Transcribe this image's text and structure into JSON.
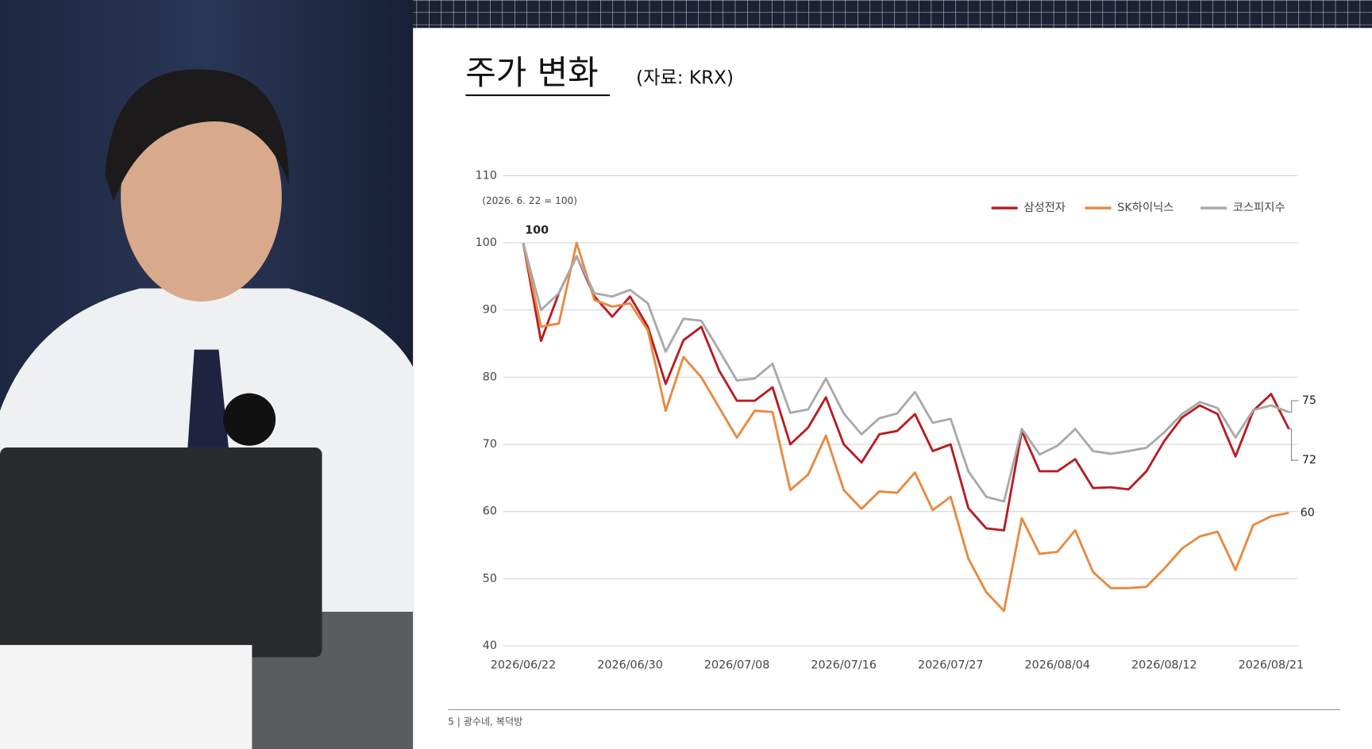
{
  "chart_data": {
    "type": "line",
    "title": "주가 변화",
    "source": "(자료: KRX)",
    "subtitle": "(2026. 6. 22 = 100)",
    "footer": "5 | 광수네, 복덕방",
    "categories": [
      "2026/06/22",
      null,
      null,
      null,
      null,
      null,
      "2026/06/30",
      null,
      null,
      null,
      null,
      null,
      "2026/07/08",
      null,
      null,
      null,
      null,
      null,
      "2026/07/16",
      null,
      null,
      null,
      null,
      null,
      "2026/07/27",
      null,
      null,
      null,
      null,
      null,
      "2026/08/04",
      null,
      null,
      null,
      null,
      null,
      "2026/08/12",
      null,
      null,
      null,
      null,
      null,
      "2026/08/21",
      null
    ],
    "series": [
      {
        "name": "삼성전자",
        "color": "#b81c22",
        "values": [
          100,
          85.4,
          92.5,
          98,
          92,
          89,
          92,
          87.5,
          79,
          85.5,
          87.5,
          81,
          76.5,
          76.5,
          78.5,
          70,
          72.5,
          77,
          70,
          67.3,
          71.5,
          72,
          74.5,
          69,
          70,
          60.5,
          57.5,
          57.2,
          72,
          66,
          66,
          67.8,
          63.5,
          63.6,
          63.3,
          66,
          70.5,
          74,
          75.8,
          74.5,
          68.2,
          75,
          77.5,
          72.3
        ]
      },
      {
        "name": "SK하이닉스",
        "color": "#e8893f",
        "values": [
          100,
          87.5,
          88,
          100,
          91.5,
          90.5,
          91,
          87,
          75,
          83,
          80,
          75.5,
          71,
          75,
          74.8,
          63.2,
          65.5,
          71.3,
          63.2,
          60.4,
          63,
          62.8,
          65.8,
          60.2,
          62.2,
          53,
          48,
          45.2,
          59,
          53.7,
          54,
          57.2,
          51,
          48.6,
          48.6,
          48.8,
          51.5,
          54.5,
          56.3,
          57,
          51.3,
          58,
          59.3,
          59.8
        ]
      },
      {
        "name": "코스피지수",
        "color": "#a9a9a9",
        "values": [
          100,
          90,
          92.5,
          98,
          92.5,
          92,
          93,
          91,
          83.8,
          88.7,
          88.4,
          84,
          79.5,
          79.8,
          82,
          74.7,
          75.2,
          79.8,
          74.6,
          71.5,
          73.9,
          74.6,
          77.8,
          73.2,
          73.8,
          66,
          62.2,
          61.5,
          72.3,
          68.5,
          69.8,
          72.3,
          69,
          68.6,
          69,
          69.5,
          71.8,
          74.5,
          76.3,
          75.4,
          71,
          75.1,
          75.8,
          74.8
        ]
      }
    ],
    "annotations": [
      "100",
      "75",
      "72",
      "60"
    ],
    "ylim": [
      40,
      110
    ],
    "yticks": [
      40,
      50,
      60,
      70,
      80,
      90,
      100,
      110
    ],
    "grid": true,
    "legend": "top-right"
  }
}
